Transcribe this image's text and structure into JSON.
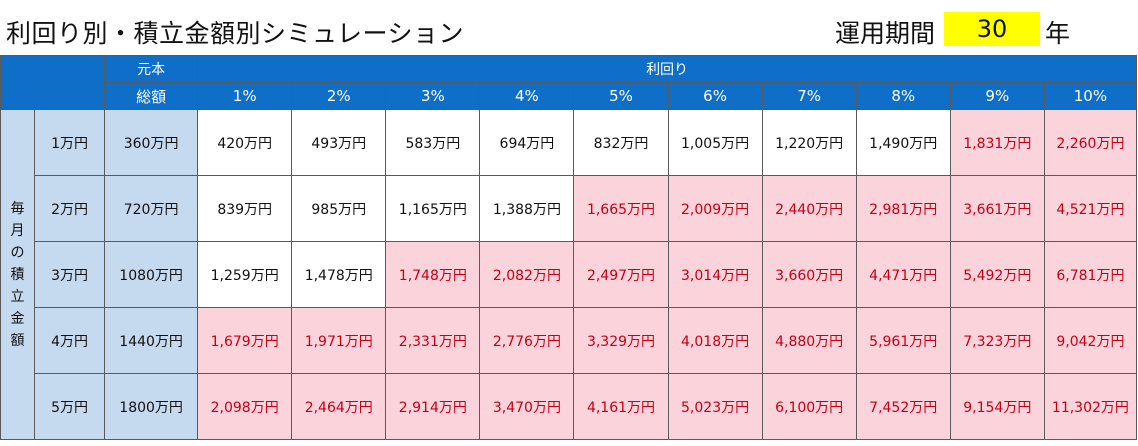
{
  "title": "利回り別・積立金額別シミュレーション",
  "period": {
    "label": "運用期間",
    "value": "30",
    "unit": "年"
  },
  "header": {
    "principal_label_top": "元本",
    "principal_label_bottom": "総額",
    "yield_label": "利回り",
    "rates": [
      "1%",
      "2%",
      "3%",
      "4%",
      "5%",
      "6%",
      "7%",
      "8%",
      "9%",
      "10%"
    ]
  },
  "side_label": [
    "毎",
    "月",
    "の",
    "積",
    "立",
    "金",
    "額"
  ],
  "rows": [
    {
      "monthly": "1万円",
      "principal": "360万円",
      "values": [
        "420万円",
        "493万円",
        "583万円",
        "694万円",
        "832万円",
        "1,005万円",
        "1,220万円",
        "1,490万円",
        "1,831万円",
        "2,260万円"
      ],
      "highlighted": [
        false,
        false,
        false,
        false,
        false,
        false,
        false,
        false,
        true,
        true
      ]
    },
    {
      "monthly": "2万円",
      "principal": "720万円",
      "values": [
        "839万円",
        "985万円",
        "1,165万円",
        "1,388万円",
        "1,665万円",
        "2,009万円",
        "2,440万円",
        "2,981万円",
        "3,661万円",
        "4,521万円"
      ],
      "highlighted": [
        false,
        false,
        false,
        false,
        true,
        true,
        true,
        true,
        true,
        true
      ]
    },
    {
      "monthly": "3万円",
      "principal": "1080万円",
      "values": [
        "1,259万円",
        "1,478万円",
        "1,748万円",
        "2,082万円",
        "2,497万円",
        "3,014万円",
        "3,660万円",
        "4,471万円",
        "5,492万円",
        "6,781万円"
      ],
      "highlighted": [
        false,
        false,
        true,
        true,
        true,
        true,
        true,
        true,
        true,
        true
      ]
    },
    {
      "monthly": "4万円",
      "principal": "1440万円",
      "values": [
        "1,679万円",
        "1,971万円",
        "2,331万円",
        "2,776万円",
        "3,329万円",
        "4,018万円",
        "4,880万円",
        "5,961万円",
        "7,323万円",
        "9,042万円"
      ],
      "highlighted": [
        true,
        true,
        true,
        true,
        true,
        true,
        true,
        true,
        true,
        true
      ]
    },
    {
      "monthly": "5万円",
      "principal": "1800万円",
      "values": [
        "2,098万円",
        "2,464万円",
        "2,914万円",
        "3,470万円",
        "4,161万円",
        "5,023万円",
        "6,100万円",
        "7,452万円",
        "9,154万円",
        "11,302万円"
      ],
      "highlighted": [
        true,
        true,
        true,
        true,
        true,
        true,
        true,
        true,
        true,
        true
      ]
    }
  ],
  "colors": {
    "header_blue": "#0f6ec7",
    "light_blue": "#c5d9ef",
    "highlight_bg": "#fbd3da",
    "highlight_text": "#c40018",
    "period_bg": "#ffff00"
  }
}
